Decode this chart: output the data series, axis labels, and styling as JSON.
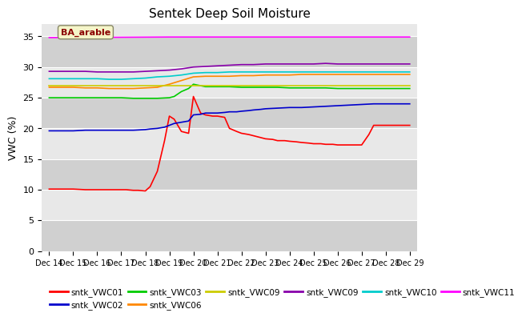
{
  "title": "Sentek Deep Soil Moisture",
  "ylabel": "VWC (%)",
  "ylim": [
    0,
    37
  ],
  "yticks": [
    0,
    5,
    10,
    15,
    20,
    25,
    30,
    35
  ],
  "plot_bg_light": "#e8e8e8",
  "plot_bg_dark": "#d0d0d0",
  "annotation_text": "BA_arable",
  "annotation_color": "#8B0000",
  "annotation_bg": "#f5f5c8",
  "series": {
    "sntk_VWC01": {
      "color": "#ff0000",
      "x": [
        0,
        0.5,
        1,
        1.5,
        2,
        2.5,
        3,
        3.2,
        3.5,
        3.7,
        4,
        4.2,
        4.5,
        4.8,
        5,
        5.2,
        5.5,
        5.8,
        6,
        6.3,
        6.5,
        6.8,
        7,
        7.3,
        7.5,
        7.8,
        8,
        8.3,
        8.5,
        8.8,
        9,
        9.3,
        9.5,
        9.8,
        10,
        10.3,
        10.5,
        10.8,
        11,
        11.3,
        11.5,
        11.8,
        12,
        12.3,
        12.5,
        12.8,
        13,
        13.3,
        13.5,
        13.8,
        14,
        14.3,
        14.5,
        14.8,
        15
      ],
      "y": [
        10.1,
        10.1,
        10.1,
        10.0,
        10.0,
        10.0,
        10.0,
        10.0,
        9.9,
        9.9,
        9.8,
        10.5,
        13.0,
        18.0,
        22.0,
        21.5,
        19.5,
        19.2,
        25.2,
        22.5,
        22.2,
        22.0,
        22.0,
        21.8,
        20.0,
        19.5,
        19.2,
        19.0,
        18.8,
        18.5,
        18.3,
        18.2,
        18.0,
        18.0,
        17.9,
        17.8,
        17.7,
        17.6,
        17.5,
        17.5,
        17.4,
        17.4,
        17.3,
        17.3,
        17.3,
        17.3,
        17.3,
        19.0,
        20.5,
        20.5,
        20.5,
        20.5,
        20.5,
        20.5,
        20.5
      ]
    },
    "sntk_VWC02": {
      "color": "#0000cc",
      "x": [
        0,
        0.5,
        1,
        1.5,
        2,
        2.5,
        3,
        3.5,
        4,
        4.2,
        4.5,
        4.8,
        5,
        5.2,
        5.5,
        5.8,
        6,
        6.3,
        6.5,
        6.8,
        7,
        7.3,
        7.5,
        7.8,
        8,
        8.3,
        8.5,
        8.8,
        9,
        9.5,
        10,
        10.5,
        11,
        11.5,
        12,
        12.5,
        13,
        13.5,
        14,
        14.5,
        15
      ],
      "y": [
        19.6,
        19.6,
        19.6,
        19.7,
        19.7,
        19.7,
        19.7,
        19.7,
        19.8,
        19.9,
        20.0,
        20.2,
        20.5,
        20.8,
        21.0,
        21.2,
        22.2,
        22.3,
        22.5,
        22.5,
        22.5,
        22.6,
        22.7,
        22.7,
        22.8,
        22.9,
        23.0,
        23.1,
        23.2,
        23.3,
        23.4,
        23.4,
        23.5,
        23.6,
        23.7,
        23.8,
        23.9,
        24.0,
        24.0,
        24.0,
        24.0
      ]
    },
    "sntk_VWC03": {
      "color": "#00cc00",
      "x": [
        0,
        0.5,
        1,
        1.5,
        2,
        2.5,
        3,
        3.5,
        4,
        4.5,
        5,
        5.2,
        5.5,
        5.8,
        6,
        6.5,
        7,
        7.5,
        8,
        8.5,
        9,
        9.5,
        10,
        10.5,
        11,
        11.5,
        12,
        12.5,
        13,
        13.5,
        14,
        14.5,
        15
      ],
      "y": [
        25.0,
        25.0,
        25.0,
        25.0,
        25.0,
        25.0,
        25.0,
        24.9,
        24.9,
        24.9,
        25.0,
        25.2,
        26.0,
        26.5,
        27.2,
        26.8,
        26.8,
        26.8,
        26.7,
        26.7,
        26.7,
        26.7,
        26.6,
        26.6,
        26.6,
        26.6,
        26.5,
        26.5,
        26.5,
        26.5,
        26.5,
        26.5,
        26.5
      ]
    },
    "sntk_VWC06": {
      "color": "#ff8800",
      "x": [
        0,
        0.5,
        1,
        1.5,
        2,
        2.5,
        3,
        3.5,
        4,
        4.5,
        5,
        5.5,
        6,
        6.5,
        7,
        7.5,
        8,
        8.5,
        9,
        9.5,
        10,
        10.5,
        11,
        11.5,
        12,
        12.5,
        13,
        13.5,
        14,
        14.5,
        15
      ],
      "y": [
        26.7,
        26.7,
        26.7,
        26.6,
        26.6,
        26.5,
        26.5,
        26.5,
        26.6,
        26.7,
        27.2,
        27.8,
        28.4,
        28.5,
        28.5,
        28.5,
        28.6,
        28.6,
        28.7,
        28.7,
        28.7,
        28.8,
        28.8,
        28.8,
        28.8,
        28.8,
        28.8,
        28.8,
        28.8,
        28.8,
        28.8
      ]
    },
    "sntk_VWC09": {
      "color": "#cccc00",
      "x": [
        0,
        5,
        10,
        15
      ],
      "y": [
        27.0,
        27.0,
        27.0,
        27.0
      ]
    },
    "sntk_VWC09b": {
      "color": "#8800aa",
      "x": [
        0,
        0.5,
        1,
        1.5,
        2,
        2.5,
        3,
        3.5,
        4,
        4.5,
        5,
        5.5,
        6,
        6.5,
        7,
        7.5,
        8,
        8.5,
        9,
        9.5,
        10,
        10.5,
        11,
        11.5,
        12,
        12.5,
        13,
        13.5,
        14,
        14.5,
        15
      ],
      "y": [
        29.3,
        29.3,
        29.3,
        29.3,
        29.2,
        29.2,
        29.2,
        29.2,
        29.3,
        29.4,
        29.5,
        29.7,
        30.0,
        30.1,
        30.2,
        30.3,
        30.4,
        30.4,
        30.5,
        30.5,
        30.5,
        30.5,
        30.5,
        30.6,
        30.5,
        30.5,
        30.5,
        30.5,
        30.5,
        30.5,
        30.5
      ]
    },
    "sntk_VWC10": {
      "color": "#00cccc",
      "x": [
        0,
        0.5,
        1,
        1.5,
        2,
        2.5,
        3,
        3.5,
        4,
        4.5,
        5,
        5.5,
        6,
        6.5,
        7,
        7.5,
        8,
        8.5,
        9,
        9.5,
        10,
        10.5,
        11,
        11.5,
        12,
        12.5,
        13,
        13.5,
        14,
        14.5,
        15
      ],
      "y": [
        28.1,
        28.1,
        28.1,
        28.1,
        28.1,
        28.0,
        28.0,
        28.1,
        28.2,
        28.4,
        28.5,
        28.7,
        29.0,
        29.1,
        29.1,
        29.2,
        29.2,
        29.2,
        29.2,
        29.2,
        29.2,
        29.2,
        29.2,
        29.2,
        29.2,
        29.2,
        29.2,
        29.2,
        29.2,
        29.2,
        29.2
      ]
    },
    "sntk_VWC11": {
      "color": "#ff00ff",
      "x": [
        0,
        5,
        10,
        15
      ],
      "y": [
        34.8,
        34.9,
        34.9,
        34.9
      ]
    }
  },
  "xtick_labels": [
    "Dec 14",
    "Dec 15",
    "Dec 16",
    "Dec 17",
    "Dec 18",
    "Dec 19",
    "Dec 20",
    "Dec 21",
    "Dec 22",
    "Dec 23",
    "Dec 24",
    "Dec 25",
    "Dec 26",
    "Dec 27",
    "Dec 28",
    "Dec 29"
  ],
  "legend_entries": [
    {
      "label": "sntk_VWC01",
      "color": "#ff0000"
    },
    {
      "label": "sntk_VWC02",
      "color": "#0000cc"
    },
    {
      "label": "sntk_VWC03",
      "color": "#00cc00"
    },
    {
      "label": "sntk_VWC06",
      "color": "#ff8800"
    },
    {
      "label": "sntk_VWC09",
      "color": "#cccc00"
    },
    {
      "label": "sntk_VWC09",
      "color": "#8800aa"
    },
    {
      "label": "sntk_VWC10",
      "color": "#00cccc"
    },
    {
      "label": "sntk_VWC11",
      "color": "#ff00ff"
    }
  ]
}
